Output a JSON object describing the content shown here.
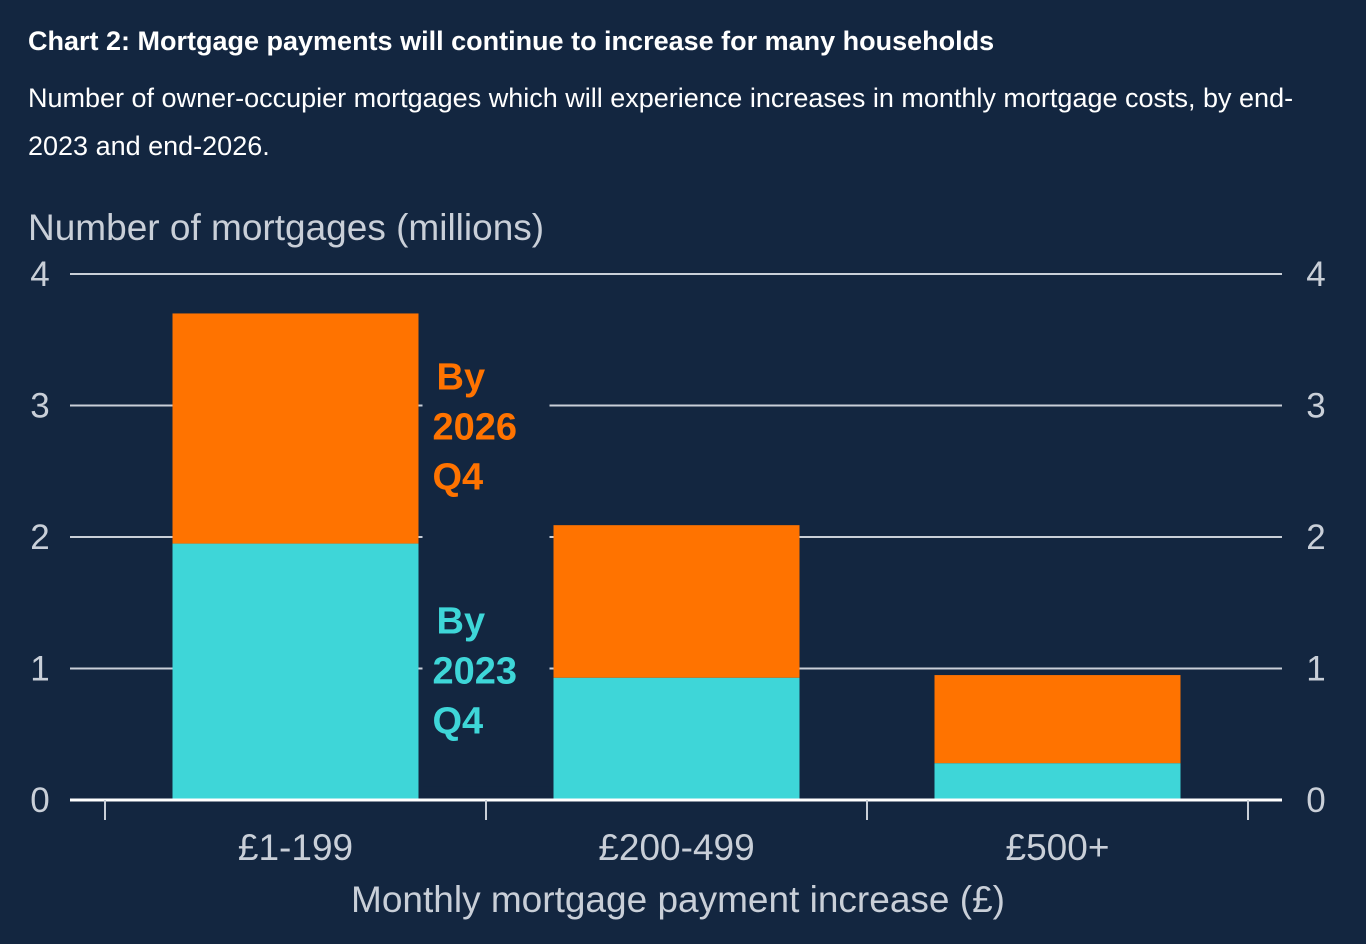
{
  "header": {
    "title": "Chart 2: Mortgage payments will continue to increase for many households",
    "subtitle": "Number of owner-occupier mortgages which will experience increases in monthly mortgage costs, by end-2023 and end-2026."
  },
  "chart_data": {
    "type": "bar",
    "stacked": true,
    "categories": [
      "£1-199",
      "£200-499",
      "£500+"
    ],
    "series": [
      {
        "name": "By 2023 Q4",
        "values": [
          1.95,
          0.93,
          0.28
        ],
        "color": "#3ed6d8"
      },
      {
        "name": "By 2026 Q4",
        "values": [
          1.75,
          1.16,
          0.67
        ],
        "color": "#ff7300"
      }
    ],
    "ylabel": "Number of mortgages (millions)",
    "xlabel": "Monthly mortgage payment increase (£)",
    "ylim": [
      0,
      4
    ],
    "yticks": [
      0,
      1,
      2,
      3,
      4
    ],
    "grid": true,
    "dual_y_axis": true,
    "annotations": [
      {
        "series": "By 2026 Q4",
        "lines": [
          "By",
          "2026",
          "Q4"
        ]
      },
      {
        "series": "By 2023 Q4",
        "lines": [
          "By",
          "2023",
          "Q4"
        ]
      }
    ]
  }
}
